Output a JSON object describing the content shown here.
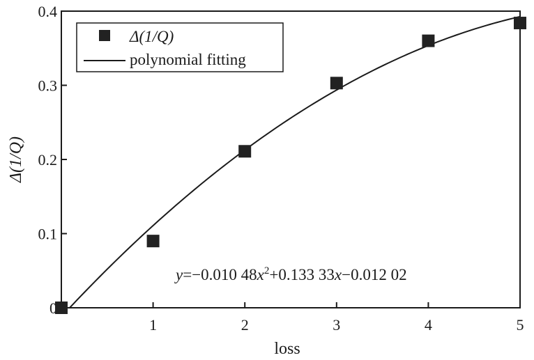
{
  "chart_data": {
    "type": "scatter",
    "xlabel": "loss",
    "ylabel": "Δ(1/Q)",
    "xlim": [
      0,
      5
    ],
    "ylim": [
      0,
      0.4
    ],
    "x_ticks": [
      {
        "value": 0,
        "label": ""
      },
      {
        "value": 1,
        "label": "1"
      },
      {
        "value": 2,
        "label": "2"
      },
      {
        "value": 3,
        "label": "3"
      },
      {
        "value": 4,
        "label": "4"
      },
      {
        "value": 5,
        "label": "5"
      }
    ],
    "y_ticks": [
      {
        "value": 0,
        "label": "0"
      },
      {
        "value": 0.1,
        "label": "0.1"
      },
      {
        "value": 0.2,
        "label": "0.2"
      },
      {
        "value": 0.3,
        "label": "0.3"
      },
      {
        "value": 0.4,
        "label": "0.4"
      }
    ],
    "grid": false,
    "legend": {
      "placement": "top-left",
      "entries": [
        {
          "label": "Δ(1/Q)",
          "marker": "square"
        },
        {
          "label": "polynomial fitting",
          "marker": "line"
        }
      ]
    },
    "series": [
      {
        "name": "Δ(1/Q)",
        "kind": "scatter",
        "marker": "square",
        "color": "#222222",
        "x": [
          0,
          1,
          2,
          3,
          4,
          5
        ],
        "y": [
          0,
          0.09,
          0.211,
          0.303,
          0.36,
          0.384
        ]
      },
      {
        "name": "polynomial fitting",
        "kind": "line",
        "color": "#222222",
        "coefficients": [
          -0.01048,
          0.13333,
          -0.01202
        ],
        "x_range": [
          0.09,
          5
        ]
      }
    ],
    "annotations": [
      {
        "text": "y=−0.010 48x²+0.133 33x−0.012 02"
      }
    ]
  }
}
